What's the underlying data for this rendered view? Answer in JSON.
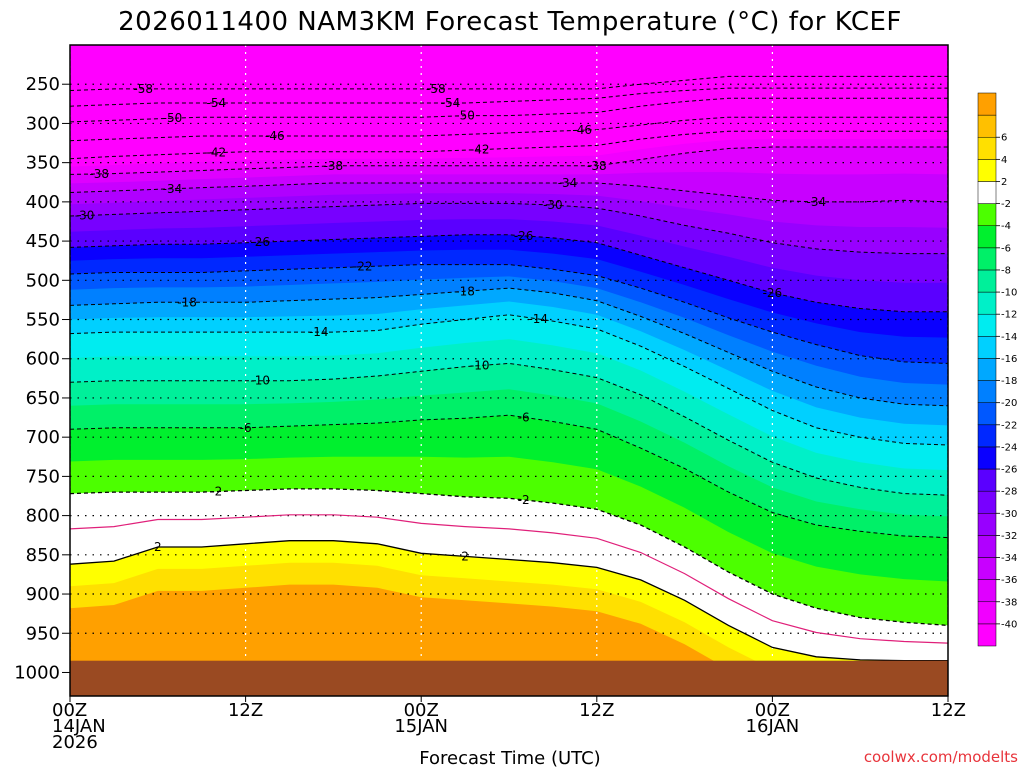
{
  "chart_data": {
    "type": "heatmap",
    "title": "2026011400 NAM3KM Forecast Temperature (°C) for KCEF",
    "xlabel": "Forecast Time (UTC)",
    "ylabel": "",
    "credit": "coolwx.com/modelts",
    "x_unit": "forecast hour",
    "xlim": [
      0,
      60
    ],
    "x_ticks": [
      {
        "hour": 0,
        "line1": "00Z",
        "line2": "14JAN",
        "line3": "2026"
      },
      {
        "hour": 12,
        "line1": "12Z",
        "line2": "",
        "line3": ""
      },
      {
        "hour": 24,
        "line1": "00Z",
        "line2": "15JAN",
        "line3": ""
      },
      {
        "hour": 36,
        "line1": "12Z",
        "line2": "",
        "line3": ""
      },
      {
        "hour": 48,
        "line1": "00Z",
        "line2": "16JAN",
        "line3": ""
      },
      {
        "hour": 60,
        "line1": "12Z",
        "line2": "",
        "line3": ""
      }
    ],
    "y_unit": "hPa",
    "ylim": [
      1030,
      200
    ],
    "y_ticks": [
      250,
      300,
      350,
      400,
      450,
      500,
      550,
      600,
      650,
      700,
      750,
      800,
      850,
      900,
      950,
      1000
    ],
    "surface_pressure": 985,
    "series_hours": [
      0,
      3,
      6,
      9,
      12,
      15,
      18,
      21,
      24,
      27,
      30,
      33,
      36,
      39,
      42,
      45,
      48,
      51,
      54,
      57,
      60
    ],
    "isotherms": [
      {
        "temp": -58,
        "label_at_hour": [
          5,
          25
        ],
        "pressures": [
          258,
          256,
          256,
          256,
          256,
          256,
          256,
          256,
          256,
          256,
          256,
          256,
          256,
          250,
          245,
          240,
          240,
          240,
          240,
          240,
          240
        ]
      },
      {
        "temp": -54,
        "label_at_hour": [
          10,
          26
        ],
        "pressures": [
          278,
          276,
          274,
          274,
          274,
          274,
          274,
          274,
          274,
          274,
          272,
          270,
          268,
          262,
          258,
          255,
          255,
          255,
          255,
          255,
          255
        ]
      },
      {
        "temp": -50,
        "label_at_hour": [
          7,
          27
        ],
        "pressures": [
          298,
          296,
          294,
          292,
          292,
          292,
          292,
          292,
          292,
          290,
          290,
          288,
          286,
          278,
          272,
          268,
          268,
          268,
          268,
          268,
          268
        ]
      },
      {
        "temp": -46,
        "label_at_hour": [
          14,
          35
        ],
        "pressures": [
          322,
          320,
          318,
          316,
          316,
          316,
          316,
          316,
          316,
          314,
          312,
          310,
          308,
          302,
          296,
          292,
          292,
          292,
          292,
          292,
          292
        ]
      },
      {
        "temp": -42,
        "label_at_hour": [
          10,
          28
        ],
        "pressures": [
          345,
          342,
          340,
          338,
          336,
          336,
          336,
          336,
          336,
          334,
          332,
          330,
          328,
          320,
          314,
          310,
          310,
          310,
          310,
          310,
          310
        ]
      },
      {
        "temp": -38,
        "label_at_hour": [
          2,
          18,
          36
        ],
        "pressures": [
          365,
          364,
          362,
          360,
          358,
          356,
          354,
          354,
          354,
          354,
          354,
          354,
          354,
          346,
          338,
          332,
          330,
          330,
          330,
          330,
          330
        ]
      },
      {
        "temp": -34,
        "label_at_hour": [
          7,
          34,
          51
        ],
        "pressures": [
          388,
          386,
          384,
          382,
          380,
          378,
          376,
          376,
          376,
          376,
          376,
          376,
          376,
          380,
          386,
          392,
          398,
          400,
          400,
          398,
          400
        ]
      },
      {
        "temp": -30,
        "label_at_hour": [
          1,
          33
        ],
        "pressures": [
          418,
          416,
          414,
          412,
          410,
          408,
          406,
          404,
          402,
          402,
          402,
          404,
          408,
          418,
          430,
          440,
          452,
          460,
          464,
          466,
          466
        ]
      },
      {
        "temp": -26,
        "label_at_hour": [
          13,
          31,
          48
        ],
        "pressures": [
          458,
          456,
          454,
          454,
          452,
          450,
          448,
          446,
          444,
          442,
          442,
          446,
          452,
          468,
          484,
          500,
          516,
          528,
          536,
          540,
          540
        ]
      },
      {
        "temp": -22,
        "label_at_hour": [
          20
        ],
        "pressures": [
          492,
          490,
          490,
          490,
          488,
          486,
          484,
          482,
          480,
          480,
          480,
          486,
          494,
          510,
          528,
          548,
          566,
          582,
          596,
          604,
          606
        ]
      },
      {
        "temp": -18,
        "label_at_hour": [
          8,
          27
        ],
        "pressures": [
          532,
          530,
          528,
          528,
          528,
          526,
          524,
          522,
          518,
          514,
          510,
          516,
          526,
          546,
          568,
          592,
          616,
          636,
          650,
          658,
          660
        ]
      },
      {
        "temp": -14,
        "label_at_hour": [
          17,
          32
        ],
        "pressures": [
          568,
          566,
          566,
          566,
          566,
          566,
          566,
          564,
          556,
          550,
          544,
          552,
          562,
          584,
          610,
          638,
          666,
          688,
          700,
          708,
          710
        ]
      },
      {
        "temp": -10,
        "label_at_hour": [
          13,
          28
        ],
        "pressures": [
          630,
          628,
          628,
          628,
          628,
          628,
          626,
          622,
          616,
          610,
          606,
          614,
          624,
          646,
          674,
          704,
          732,
          752,
          764,
          772,
          774
        ]
      },
      {
        "temp": -6,
        "label_at_hour": [
          12,
          31
        ],
        "pressures": [
          690,
          688,
          688,
          688,
          688,
          686,
          684,
          682,
          678,
          676,
          672,
          680,
          690,
          714,
          740,
          770,
          796,
          812,
          820,
          826,
          828
        ]
      },
      {
        "temp": -2,
        "label_at_hour": [
          10,
          31
        ],
        "pressures": [
          772,
          770,
          770,
          770,
          768,
          766,
          766,
          768,
          772,
          776,
          778,
          784,
          792,
          812,
          840,
          872,
          900,
          918,
          930,
          936,
          940
        ]
      },
      {
        "temp": 2,
        "label_at_hour": [
          6,
          27
        ],
        "pressures": [
          862,
          858,
          840,
          840,
          836,
          832,
          832,
          836,
          848,
          852,
          856,
          860,
          866,
          882,
          908,
          940,
          968,
          980,
          984,
          985,
          985
        ]
      }
    ],
    "colorbar": {
      "unit": "°C",
      "levels": [
        -40,
        -38,
        -36,
        -34,
        -32,
        -30,
        -28,
        -26,
        -24,
        -22,
        -20,
        -18,
        -16,
        -14,
        -12,
        -10,
        -8,
        -6,
        -4,
        -2,
        2,
        4,
        6
      ],
      "tick_labels": [
        "-40",
        "-38",
        "-36",
        "-34",
        "-32",
        "-30",
        "-28",
        "-26",
        "-24",
        "-22",
        "-20",
        "-18",
        "-16",
        "-14",
        "-12",
        "-10",
        "-8",
        "-6",
        "-4",
        "-2",
        "2",
        "4",
        "6"
      ],
      "colors": [
        "#ff00ff",
        "#f100ff",
        "#df00ff",
        "#c800ff",
        "#b000ff",
        "#9800ff",
        "#7800ff",
        "#5a00ff",
        "#0a00ff",
        "#0028ff",
        "#0058ff",
        "#0080ff",
        "#00a8ff",
        "#00d0ff",
        "#00ecf0",
        "#00f0c8",
        "#00f09a",
        "#00f068",
        "#00f02e",
        "#4cff00",
        "#ffffff",
        "#ffff00",
        "#ffe000",
        "#ffc000",
        "#ffa000"
      ]
    },
    "surface_fill": "#9a4a22"
  }
}
